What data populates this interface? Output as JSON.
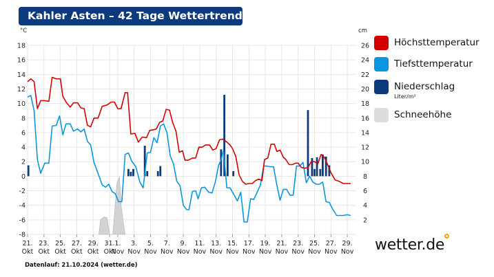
{
  "chart_data": {
    "type": "line",
    "title": "Kahler Asten – 42 Tage Wettertrend",
    "left_unit": "°C",
    "right_unit": "cm",
    "left_ylim": [
      -8,
      18
    ],
    "right_ylim": [
      0,
      26
    ],
    "left_ticks": [
      18,
      16,
      14,
      12,
      10,
      8,
      6,
      4,
      2,
      0,
      -2,
      -4,
      -6,
      -8
    ],
    "right_ticks": [
      26,
      24,
      22,
      20,
      18,
      16,
      14,
      12,
      10,
      8,
      6,
      4,
      2
    ],
    "x_labels": [
      {
        "day": 0,
        "line1": "21.",
        "line2": "Okt"
      },
      {
        "day": 2,
        "line1": "23.",
        "line2": "Okt"
      },
      {
        "day": 4,
        "line1": "25.",
        "line2": "Okt"
      },
      {
        "day": 6,
        "line1": "27.",
        "line2": "Okt"
      },
      {
        "day": 8,
        "line1": "29.",
        "line2": "Okt"
      },
      {
        "day": 10,
        "line1": "31.",
        "line2": "Okt"
      },
      {
        "day": 11,
        "line1": "1.",
        "line2": "Nov"
      },
      {
        "day": 13,
        "line1": "3.",
        "line2": "Nov"
      },
      {
        "day": 15,
        "line1": "5.",
        "line2": "Nov"
      },
      {
        "day": 17,
        "line1": "7.",
        "line2": "Nov"
      },
      {
        "day": 19,
        "line1": "9.",
        "line2": "Nov"
      },
      {
        "day": 21,
        "line1": "11.",
        "line2": "Nov"
      },
      {
        "day": 23,
        "line1": "13.",
        "line2": "Nov"
      },
      {
        "day": 25,
        "line1": "15.",
        "line2": "Nov"
      },
      {
        "day": 27,
        "line1": "17.",
        "line2": "Nov"
      },
      {
        "day": 29,
        "line1": "19.",
        "line2": "Nov"
      },
      {
        "day": 31,
        "line1": "21.",
        "line2": "Nov"
      },
      {
        "day": 33,
        "line1": "23.",
        "line2": "Nov"
      },
      {
        "day": 35,
        "line1": "25.",
        "line2": "Nov"
      },
      {
        "day": 37,
        "line1": "27.",
        "line2": "Nov"
      },
      {
        "day": 39,
        "line1": "29.",
        "line2": "Nov"
      }
    ],
    "series": [
      {
        "name": "Höchsttemperatur",
        "color": "#d40000",
        "axis": "left",
        "points": [
          [
            0,
            13
          ],
          [
            0.4,
            13.4
          ],
          [
            0.8,
            13
          ],
          [
            1.2,
            9.3
          ],
          [
            1.6,
            10.4
          ],
          [
            2.1,
            10.4
          ],
          [
            2.6,
            10.3
          ],
          [
            3,
            13.6
          ],
          [
            3.5,
            13.4
          ],
          [
            4,
            13.4
          ],
          [
            4.3,
            11
          ],
          [
            4.7,
            10.2
          ],
          [
            5.2,
            9.5
          ],
          [
            5.6,
            10.1
          ],
          [
            6.1,
            10.1
          ],
          [
            6.5,
            9.4
          ],
          [
            6.9,
            9.3
          ],
          [
            7.3,
            7
          ],
          [
            7.7,
            6.8
          ],
          [
            8.1,
            8
          ],
          [
            8.6,
            8
          ],
          [
            9.1,
            9.6
          ],
          [
            9.7,
            9.8
          ],
          [
            10.2,
            10.2
          ],
          [
            10.6,
            10.2
          ],
          [
            11,
            9.3
          ],
          [
            11.4,
            9.3
          ],
          [
            11.9,
            11.5
          ],
          [
            12.2,
            11.5
          ],
          [
            12.6,
            5.8
          ],
          [
            13.1,
            5.9
          ],
          [
            13.5,
            4.7
          ],
          [
            14,
            5.4
          ],
          [
            14.5,
            5.3
          ],
          [
            14.9,
            6.3
          ],
          [
            15.4,
            6.4
          ],
          [
            15.7,
            6.5
          ],
          [
            16.1,
            7.4
          ],
          [
            16.5,
            7.6
          ],
          [
            16.9,
            9.2
          ],
          [
            17.3,
            9.1
          ],
          [
            17.7,
            7.4
          ],
          [
            18.1,
            6.2
          ],
          [
            18.5,
            3.3
          ],
          [
            18.9,
            3.5
          ],
          [
            19.2,
            2.2
          ],
          [
            19.6,
            2.2
          ],
          [
            20.1,
            2.5
          ],
          [
            20.5,
            2.5
          ],
          [
            20.9,
            4
          ],
          [
            21.3,
            4
          ],
          [
            21.7,
            4.3
          ],
          [
            22.2,
            4.3
          ],
          [
            22.6,
            3.6
          ],
          [
            23,
            3.8
          ],
          [
            23.4,
            5
          ],
          [
            23.8,
            5.1
          ],
          [
            24.2,
            4.8
          ],
          [
            24.7,
            4.3
          ],
          [
            25,
            3.8
          ],
          [
            25.4,
            2.7
          ],
          [
            25.8,
            0.2
          ],
          [
            26.2,
            -0.7
          ],
          [
            26.6,
            -1.1
          ],
          [
            27,
            -1
          ],
          [
            27.4,
            -1
          ],
          [
            27.8,
            -0.6
          ],
          [
            28.2,
            -0.4
          ],
          [
            28.6,
            -0.6
          ],
          [
            28.9,
            2.3
          ],
          [
            29.3,
            2.5
          ],
          [
            29.7,
            4.4
          ],
          [
            30.1,
            4.4
          ],
          [
            30.4,
            3.4
          ],
          [
            30.8,
            3.6
          ],
          [
            31.2,
            2.6
          ],
          [
            31.5,
            2.3
          ],
          [
            31.9,
            1.6
          ],
          [
            32.3,
            1.6
          ],
          [
            32.7,
            1.8
          ],
          [
            33,
            1.8
          ],
          [
            33.4,
            1.2
          ],
          [
            33.8,
            1.1
          ],
          [
            34.2,
            1.2
          ],
          [
            34.6,
            2
          ],
          [
            35,
            2
          ],
          [
            35.4,
            1.7
          ],
          [
            35.8,
            3
          ],
          [
            36.2,
            2.6
          ],
          [
            36.6,
            1.6
          ],
          [
            37,
            0.5
          ],
          [
            37.5,
            -0.5
          ],
          [
            38,
            -0.7
          ],
          [
            38.5,
            -1
          ],
          [
            39,
            -1
          ],
          [
            39.4,
            -1
          ]
        ]
      },
      {
        "name": "Tiefsttemperatur",
        "color": "#0a96de",
        "axis": "left",
        "points": [
          [
            0,
            10.9
          ],
          [
            0.4,
            11.1
          ],
          [
            0.8,
            9
          ],
          [
            1.2,
            2.3
          ],
          [
            1.6,
            0.4
          ],
          [
            2.1,
            1.8
          ],
          [
            2.6,
            1.8
          ],
          [
            3,
            6.9
          ],
          [
            3.5,
            7
          ],
          [
            3.9,
            8.3
          ],
          [
            4.3,
            5.7
          ],
          [
            4.7,
            7.2
          ],
          [
            5.2,
            7.2
          ],
          [
            5.6,
            6.2
          ],
          [
            6.1,
            6.5
          ],
          [
            6.5,
            6.1
          ],
          [
            6.9,
            6.5
          ],
          [
            7.3,
            4.8
          ],
          [
            7.7,
            4.3
          ],
          [
            8.1,
            1.9
          ],
          [
            8.6,
            0.4
          ],
          [
            9.1,
            -1.2
          ],
          [
            9.5,
            -1.5
          ],
          [
            9.9,
            -1.1
          ],
          [
            10.3,
            -2.1
          ],
          [
            10.7,
            -2.4
          ],
          [
            11.1,
            -3.5
          ],
          [
            11.5,
            -3.5
          ],
          [
            11.9,
            3
          ],
          [
            12.3,
            3.2
          ],
          [
            12.7,
            2.1
          ],
          [
            13.2,
            1.3
          ],
          [
            13.7,
            -0.8
          ],
          [
            14.1,
            -1.6
          ],
          [
            14.6,
            3.2
          ],
          [
            15,
            3.3
          ],
          [
            15.4,
            5.3
          ],
          [
            15.8,
            4.6
          ],
          [
            16.2,
            6.9
          ],
          [
            16.6,
            7.2
          ],
          [
            17,
            6
          ],
          [
            17.4,
            2.8
          ],
          [
            17.8,
            1.7
          ],
          [
            18.2,
            -0.7
          ],
          [
            18.6,
            -1.3
          ],
          [
            19,
            -4
          ],
          [
            19.4,
            -4.6
          ],
          [
            19.7,
            -4.6
          ],
          [
            20.1,
            -2.1
          ],
          [
            20.5,
            -2
          ],
          [
            20.8,
            -3.1
          ],
          [
            21.2,
            -1.6
          ],
          [
            21.6,
            -1.5
          ],
          [
            22.1,
            -2.2
          ],
          [
            22.5,
            -2.3
          ],
          [
            22.9,
            -0.8
          ],
          [
            23.3,
            1.5
          ],
          [
            23.6,
            2.2
          ],
          [
            23.9,
            3.6
          ],
          [
            24.3,
            -1.6
          ],
          [
            24.7,
            -1.6
          ],
          [
            25.1,
            -2.4
          ],
          [
            25.6,
            -3.4
          ],
          [
            26,
            -2.2
          ],
          [
            26.4,
            -6.3
          ],
          [
            26.8,
            -6.3
          ],
          [
            27.2,
            -3.1
          ],
          [
            27.6,
            -3.2
          ],
          [
            28,
            -2.2
          ],
          [
            28.4,
            -1.2
          ],
          [
            28.8,
            1.4
          ],
          [
            29.2,
            1.4
          ],
          [
            29.6,
            1.3
          ],
          [
            30,
            1.3
          ],
          [
            30.4,
            -1.2
          ],
          [
            30.8,
            -3.3
          ],
          [
            31.2,
            -1.8
          ],
          [
            31.6,
            -1.8
          ],
          [
            32,
            -2.6
          ],
          [
            32.4,
            -2.6
          ],
          [
            32.8,
            1.4
          ],
          [
            33.2,
            1.4
          ],
          [
            33.6,
            1.9
          ],
          [
            34,
            -0.9
          ],
          [
            34.4,
            0
          ],
          [
            34.8,
            -0.8
          ],
          [
            35.2,
            -1.1
          ],
          [
            35.6,
            -1.1
          ],
          [
            36,
            -0.8
          ],
          [
            36.4,
            -3.5
          ],
          [
            36.8,
            -3.6
          ],
          [
            37.2,
            -4.5
          ],
          [
            37.7,
            -5.4
          ],
          [
            38.1,
            -5.4
          ],
          [
            38.5,
            -5.4
          ],
          [
            39,
            -5.3
          ],
          [
            39.4,
            -5.4
          ]
        ]
      },
      {
        "name": "Niederschlag",
        "unit": "Liter/m²",
        "color": "#0d3a7a",
        "axis": "right",
        "bars": [
          [
            0.1,
            1.5
          ],
          [
            12.3,
            1
          ],
          [
            12.6,
            0.6
          ],
          [
            12.9,
            1
          ],
          [
            14.3,
            4.2
          ],
          [
            14.6,
            0.7
          ],
          [
            15.9,
            0.7
          ],
          [
            16.2,
            1.4
          ],
          [
            23.6,
            3.7
          ],
          [
            24,
            11.2
          ],
          [
            24.4,
            3
          ],
          [
            25.1,
            0.7
          ],
          [
            34.2,
            9.1
          ],
          [
            34.7,
            2.5
          ],
          [
            35,
            1
          ],
          [
            35.3,
            2.6
          ],
          [
            35.7,
            1
          ],
          [
            36,
            3
          ],
          [
            36.4,
            2.7
          ],
          [
            36.8,
            1.5
          ]
        ]
      },
      {
        "name": "Schneehöhe",
        "color": "#cfcfcf",
        "axis": "right",
        "points": [
          [
            8.7,
            0
          ],
          [
            8.9,
            2
          ],
          [
            9.3,
            2.4
          ],
          [
            9.7,
            2.3
          ],
          [
            10.0,
            0
          ],
          [
            10.4,
            0
          ],
          [
            10.6,
            2.7
          ],
          [
            10.9,
            7
          ],
          [
            11.2,
            7.9
          ],
          [
            11.4,
            4
          ],
          [
            11.7,
            1.5
          ],
          [
            11.9,
            0
          ]
        ]
      }
    ],
    "legend_unit": "Liter/m²",
    "footer": "Datenlauf: 21.10.2024 (wetter.de)",
    "brand": "wetter.de"
  }
}
